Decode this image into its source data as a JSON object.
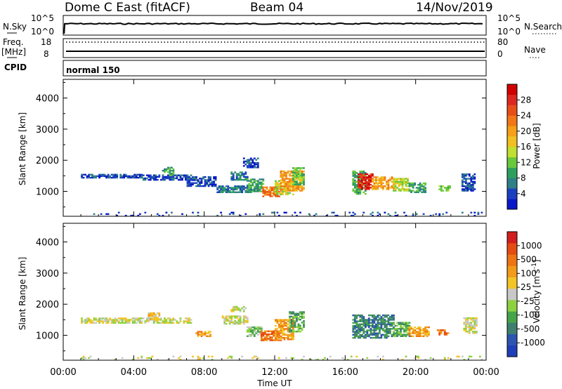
{
  "header": {
    "title": "Dome C East (fitACF)",
    "beam": "Beam 04",
    "date": "14/Nov/2019"
  },
  "top_panels": {
    "nsky": {
      "label": "N.Sky",
      "tick_top": "10^5",
      "tick_bottom": "10^0",
      "right_label": "N.Search",
      "right_tick_top": "10^5",
      "right_tick_bottom": "10^0"
    },
    "freq": {
      "label_line1": "Freq.",
      "label_line2": "[MHz]",
      "tick_top": "18",
      "tick_bottom": "8",
      "right_label": "Nave",
      "right_tick_top": "80",
      "right_tick_bottom": "0"
    },
    "cpid": {
      "label": "CPID",
      "text": "normal 150"
    }
  },
  "chart_data": [
    {
      "type": "heatmap",
      "name": "power",
      "xlabel": "",
      "ylabel": "Slant Range [km]",
      "x_ticks": [
        "00:00",
        "04:00",
        "08:00",
        "12:00",
        "16:00",
        "20:00",
        "00:00"
      ],
      "x_range_hours": [
        0,
        24
      ],
      "y_ticks": [
        1000,
        2000,
        3000,
        4000
      ],
      "ylim": [
        200,
        4600
      ],
      "colorbar": {
        "label": "Power [dB]",
        "ticks": [
          "4",
          "8",
          "12",
          "16",
          "20",
          "24",
          "28"
        ],
        "colors": [
          "#0a18c8",
          "#1a40c0",
          "#2f7f86",
          "#2ea05e",
          "#69c83c",
          "#bfe030",
          "#f0c020",
          "#f5a018",
          "#f07818",
          "#e84e18",
          "#dc2820",
          "#d00000"
        ]
      },
      "regions": [
        {
          "t0": 1.0,
          "t1": 4.5,
          "r0": 1420,
          "r1": 1560,
          "c": 1
        },
        {
          "t0": 4.5,
          "t1": 7.2,
          "r0": 1350,
          "r1": 1520,
          "c": 1
        },
        {
          "t0": 5.6,
          "t1": 6.2,
          "r0": 1500,
          "r1": 1750,
          "c": 3
        },
        {
          "t0": 7.0,
          "t1": 8.6,
          "r0": 1150,
          "r1": 1480,
          "c": 1
        },
        {
          "t0": 9.5,
          "t1": 10.4,
          "r0": 1350,
          "r1": 1600,
          "c": 2
        },
        {
          "t0": 10.2,
          "t1": 11.0,
          "r0": 1750,
          "r1": 2050,
          "c": 1
        },
        {
          "t0": 8.7,
          "t1": 10.6,
          "r0": 950,
          "r1": 1150,
          "c": 2
        },
        {
          "t0": 10.4,
          "t1": 11.3,
          "r0": 980,
          "r1": 1400,
          "c": 3
        },
        {
          "t0": 11.3,
          "t1": 12.2,
          "r0": 820,
          "r1": 1150,
          "c": 8
        },
        {
          "t0": 12.0,
          "t1": 13.0,
          "r0": 880,
          "r1": 1320,
          "c": 5
        },
        {
          "t0": 12.3,
          "t1": 13.6,
          "r0": 1000,
          "r1": 1650,
          "c": 7
        },
        {
          "t0": 13.0,
          "t1": 13.6,
          "r0": 1200,
          "r1": 1750,
          "c": 4
        },
        {
          "t0": 16.4,
          "t1": 17.2,
          "r0": 900,
          "r1": 1650,
          "c": 3
        },
        {
          "t0": 16.7,
          "t1": 17.6,
          "r0": 1050,
          "r1": 1550,
          "c": 10
        },
        {
          "t0": 17.5,
          "t1": 18.8,
          "r0": 1050,
          "r1": 1450,
          "c": 7
        },
        {
          "t0": 18.7,
          "t1": 19.6,
          "r0": 1000,
          "r1": 1400,
          "c": 5
        },
        {
          "t0": 19.6,
          "t1": 20.6,
          "r0": 950,
          "r1": 1250,
          "c": 3
        },
        {
          "t0": 21.3,
          "t1": 22.0,
          "r0": 1000,
          "r1": 1150,
          "c": 4
        },
        {
          "t0": 22.6,
          "t1": 23.4,
          "r0": 1000,
          "r1": 1550,
          "c": 1
        },
        {
          "t0": 0.8,
          "t1": 23.8,
          "r0": 200,
          "r1": 320,
          "c": 1
        }
      ]
    },
    {
      "type": "heatmap",
      "name": "velocity",
      "xlabel": "Time UT",
      "ylabel": "Slant Range [km]",
      "x_ticks": [
        "00:00",
        "04:00",
        "08:00",
        "12:00",
        "16:00",
        "20:00",
        "00:00"
      ],
      "x_range_hours": [
        0,
        24
      ],
      "y_ticks": [
        1000,
        2000,
        3000,
        4000
      ],
      "ylim": [
        200,
        4600
      ],
      "colorbar": {
        "label": "Velocity [m s^-1]",
        "ticks": [
          "1000",
          "500",
          "100",
          "25",
          "-25",
          "-100",
          "-500",
          "-1000"
        ],
        "colors": [
          "#1f3fb8",
          "#2d55b0",
          "#3e7f70",
          "#46a44a",
          "#8cd240",
          "#c8c8c8",
          "#f2c424",
          "#f29a1a",
          "#ee7414",
          "#e44c12",
          "#d21e1e"
        ]
      },
      "regions": [
        {
          "t0": 1.0,
          "t1": 7.2,
          "r0": 1380,
          "r1": 1560,
          "c": 5
        },
        {
          "t0": 4.8,
          "t1": 5.4,
          "r0": 1500,
          "r1": 1700,
          "c": 6
        },
        {
          "t0": 7.5,
          "t1": 8.3,
          "r0": 950,
          "r1": 1100,
          "c": 7
        },
        {
          "t0": 9.0,
          "t1": 10.4,
          "r0": 1350,
          "r1": 1600,
          "c": 5
        },
        {
          "t0": 9.5,
          "t1": 10.3,
          "r0": 1750,
          "r1": 1900,
          "c": 5
        },
        {
          "t0": 10.4,
          "t1": 11.2,
          "r0": 950,
          "r1": 1250,
          "c": 4
        },
        {
          "t0": 11.2,
          "t1": 12.3,
          "r0": 820,
          "r1": 1150,
          "c": 8
        },
        {
          "t0": 12.0,
          "t1": 13.0,
          "r0": 850,
          "r1": 1500,
          "c": 7
        },
        {
          "t0": 12.8,
          "t1": 13.6,
          "r0": 1100,
          "r1": 1750,
          "c": 3
        },
        {
          "t0": 16.4,
          "t1": 18.8,
          "r0": 900,
          "r1": 1650,
          "c": 2
        },
        {
          "t0": 18.7,
          "t1": 19.7,
          "r0": 950,
          "r1": 1400,
          "c": 3
        },
        {
          "t0": 19.6,
          "t1": 20.8,
          "r0": 950,
          "r1": 1250,
          "c": 7
        },
        {
          "t0": 21.2,
          "t1": 21.9,
          "r0": 1000,
          "r1": 1150,
          "c": 8
        },
        {
          "t0": 22.7,
          "t1": 23.5,
          "r0": 1050,
          "r1": 1550,
          "c": 5
        },
        {
          "t0": 0.8,
          "t1": 23.8,
          "r0": 200,
          "r1": 320,
          "c": 5
        }
      ]
    }
  ]
}
